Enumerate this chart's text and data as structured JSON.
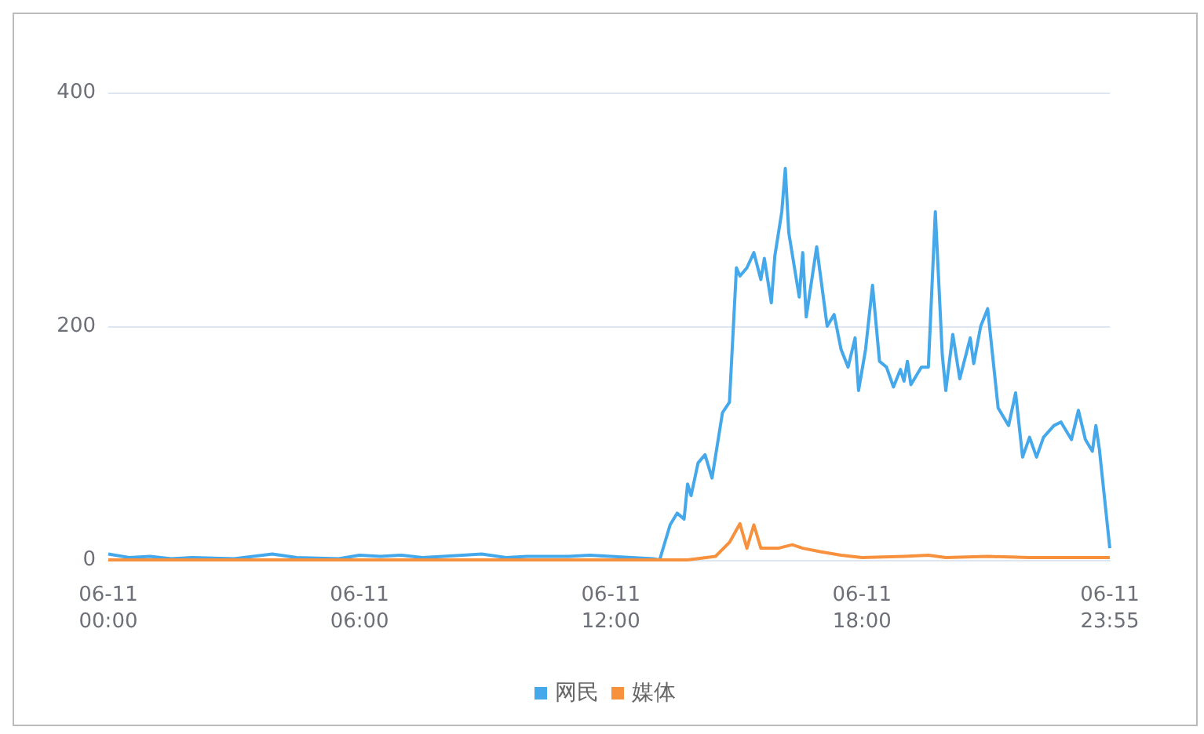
{
  "chart_data": {
    "type": "line",
    "xlim": [
      "--06-11T00:00",
      "--06-11T23:55"
    ],
    "ylim": [
      0,
      400
    ],
    "xticks": [
      {
        "value": "--06-11T00:00",
        "label": "06-11\n00:00"
      },
      {
        "value": "--06-11T06:00",
        "label": "06-11\n06:00"
      },
      {
        "value": "--06-11T12:00",
        "label": "06-11\n12:00"
      },
      {
        "value": "--06-11T18:00",
        "label": "06-11\n18:00"
      },
      {
        "value": "--06-11T23:55",
        "label": "06-11\n23:55"
      }
    ],
    "yticks": [
      0,
      200,
      400
    ],
    "grid": "y",
    "legend": "bottom",
    "marker": "none",
    "line_style": "solid",
    "series": [
      {
        "name": "网民",
        "color": "#45a8ea",
        "x": [
          "--06-11T00:00",
          "--06-11T00:30",
          "--06-11T01:00",
          "--06-11T01:30",
          "--06-11T02:00",
          "--06-11T03:00",
          "--06-11T03:55",
          "--06-11T04:30",
          "--06-11T05:30",
          "--06-11T06:00",
          "--06-11T06:30",
          "--06-11T07:00",
          "--06-11T07:30",
          "--06-11T08:00",
          "--06-11T08:55",
          "--06-11T09:30",
          "--06-11T10:00",
          "--06-11T11:00",
          "--06-11T11:30",
          "--06-11T12:00",
          "--06-11T12:30",
          "--06-11T13:00",
          "--06-11T13:10",
          "--06-11T13:25",
          "--06-11T13:35",
          "--06-11T13:45",
          "--06-11T13:50",
          "--06-11T13:55",
          "--06-11T14:05",
          "--06-11T14:15",
          "--06-11T14:25",
          "--06-11T14:40",
          "--06-11T14:50",
          "--06-11T15:00",
          "--06-11T15:05",
          "--06-11T15:15",
          "--06-11T15:25",
          "--06-11T15:35",
          "--06-11T15:40",
          "--06-11T15:50",
          "--06-11T15:55",
          "--06-11T16:05",
          "--06-11T16:10",
          "--06-11T16:15",
          "--06-11T16:30",
          "--06-11T16:35",
          "--06-11T16:40",
          "--06-11T16:55",
          "--06-11T17:10",
          "--06-11T17:20",
          "--06-11T17:30",
          "--06-11T17:40",
          "--06-11T17:50",
          "--06-11T17:55",
          "--06-11T18:05",
          "--06-11T18:15",
          "--06-11T18:25",
          "--06-11T18:35",
          "--06-11T18:45",
          "--06-11T18:55",
          "--06-11T19:00",
          "--06-11T19:05",
          "--06-11T19:10",
          "--06-11T19:25",
          "--06-11T19:35",
          "--06-11T19:45",
          "--06-11T19:55",
          "--06-11T20:00",
          "--06-11T20:10",
          "--06-11T20:20",
          "--06-11T20:35",
          "--06-11T20:40",
          "--06-11T20:50",
          "--06-11T21:00",
          "--06-11T21:15",
          "--06-11T21:30",
          "--06-11T21:40",
          "--06-11T21:50",
          "--06-11T22:00",
          "--06-11T22:10",
          "--06-11T22:20",
          "--06-11T22:35",
          "--06-11T22:45",
          "--06-11T23:00",
          "--06-11T23:10",
          "--06-11T23:20",
          "--06-11T23:30",
          "--06-11T23:35",
          "--06-11T23:40",
          "--06-11T23:55"
        ],
        "values": [
          5,
          2,
          3,
          1,
          2,
          1,
          5,
          2,
          1,
          4,
          3,
          4,
          2,
          3,
          5,
          2,
          3,
          3,
          4,
          3,
          2,
          1,
          0,
          30,
          40,
          35,
          65,
          55,
          83,
          90,
          70,
          126,
          135,
          250,
          243,
          250,
          263,
          240,
          258,
          220,
          260,
          298,
          335,
          280,
          225,
          263,
          208,
          268,
          200,
          210,
          180,
          165,
          190,
          145,
          180,
          235,
          170,
          165,
          148,
          163,
          153,
          170,
          150,
          165,
          165,
          298,
          175,
          145,
          193,
          155,
          190,
          168,
          200,
          215,
          130,
          115,
          143,
          88,
          105,
          88,
          105,
          115,
          118,
          103,
          128,
          103,
          93,
          115,
          95,
          10
        ]
      },
      {
        "name": "媒体",
        "color": "#f7913d",
        "x": [
          "--06-11T00:00",
          "--06-11T13:50",
          "--06-11T14:30",
          "--06-11T14:50",
          "--06-11T15:05",
          "--06-11T15:15",
          "--06-11T15:25",
          "--06-11T15:35",
          "--06-11T16:00",
          "--06-11T16:20",
          "--06-11T16:35",
          "--06-11T17:00",
          "--06-11T17:30",
          "--06-11T18:00",
          "--06-11T19:00",
          "--06-11T19:35",
          "--06-11T20:00",
          "--06-11T21:00",
          "--06-11T22:00",
          "--06-11T23:55"
        ],
        "values": [
          0,
          0,
          3,
          15,
          31,
          10,
          30,
          10,
          10,
          13,
          10,
          7,
          4,
          2,
          3,
          4,
          2,
          3,
          2,
          2
        ]
      }
    ]
  }
}
